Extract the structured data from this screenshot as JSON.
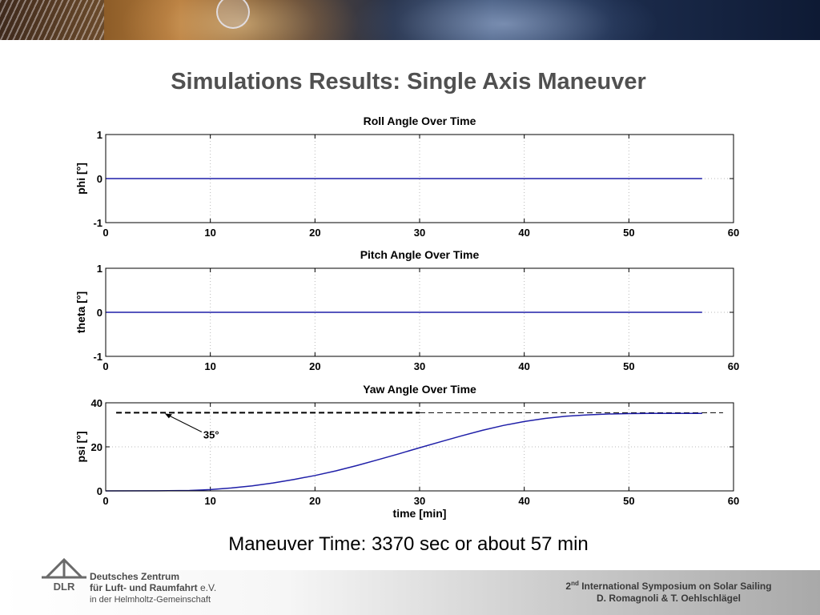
{
  "slide": {
    "title": "Simulations Results: Single Axis Maneuver",
    "caption": "Maneuver Time: 3370 sec or about 57 min"
  },
  "footer": {
    "org_line1": "Deutsches Zentrum",
    "org_line2": "für Luft- und Raumfahrt",
    "org_line2_suffix": "e.V.",
    "org_line3": "in der Helmholtz-Gemeinschaft",
    "logo_text": "DLR",
    "conference_ordinal": "2",
    "conference_ordinal_suffix": "nd",
    "conference_rest": "International Symposium on Solar Sailing",
    "authors": "D. Romagnoli & T. Oehlschlägel"
  },
  "chart_data": [
    {
      "type": "line",
      "title": "Roll Angle Over Time",
      "xlabel": "",
      "ylabel": "phi [°]",
      "xlim": [
        0,
        60
      ],
      "ylim": [
        -1,
        1
      ],
      "xticks": [
        0,
        10,
        20,
        30,
        40,
        50,
        60
      ],
      "yticks": [
        -1,
        0,
        1
      ],
      "grid": true,
      "series_color": "#1f1fa8",
      "series": [
        {
          "x": [
            0,
            57
          ],
          "y": [
            0,
            0
          ]
        }
      ]
    },
    {
      "type": "line",
      "title": "Pitch Angle Over Time",
      "xlabel": "",
      "ylabel": "theta [°]",
      "xlim": [
        0,
        60
      ],
      "ylim": [
        -1,
        1
      ],
      "xticks": [
        0,
        10,
        20,
        30,
        40,
        50,
        60
      ],
      "yticks": [
        -1,
        0,
        1
      ],
      "grid": true,
      "series_color": "#1f1fa8",
      "series": [
        {
          "x": [
            0,
            57
          ],
          "y": [
            0,
            0
          ]
        }
      ]
    },
    {
      "type": "line",
      "title": "Yaw Angle Over Time",
      "xlabel": "time [min]",
      "ylabel": "psi [°]",
      "xlim": [
        0,
        60
      ],
      "ylim": [
        0,
        40
      ],
      "xticks": [
        0,
        10,
        20,
        30,
        40,
        50,
        60
      ],
      "yticks": [
        0,
        20,
        40
      ],
      "grid": true,
      "series_color": "#1f1fa8",
      "series": [
        {
          "x": [
            0,
            5,
            8,
            10,
            12,
            14,
            16,
            18,
            20,
            22,
            24,
            26,
            28,
            30,
            32,
            34,
            36,
            38,
            40,
            42,
            44,
            46,
            48,
            50,
            52,
            54,
            57
          ],
          "y": [
            0,
            0.05,
            0.2,
            0.6,
            1.3,
            2.3,
            3.6,
            5.2,
            7.0,
            9.1,
            11.5,
            14.1,
            16.8,
            19.6,
            22.3,
            25.0,
            27.5,
            29.7,
            31.5,
            32.9,
            33.9,
            34.5,
            34.9,
            35.1,
            35.2,
            35.2,
            35.2
          ]
        }
      ],
      "reference": {
        "y": 35.5,
        "x_range": [
          1,
          59
        ],
        "style": "dashed"
      },
      "annotation": {
        "text": "35°",
        "x": 5.5,
        "y": 35.5
      }
    }
  ]
}
